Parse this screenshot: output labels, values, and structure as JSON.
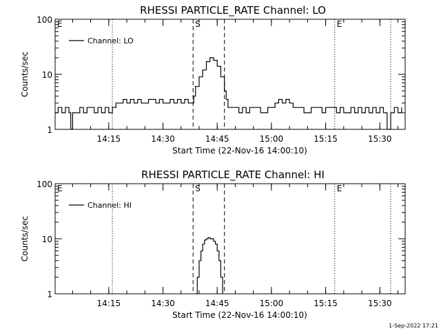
{
  "footer": {
    "date_stamp": "1-Sep-2022 17:21"
  },
  "chart_data": [
    {
      "type": "line",
      "title": "RHESSI PARTICLE_RATE Channel: LO",
      "xlabel": "Start Time (22-Nov-16 14:00:10)",
      "ylabel": "Counts/sec",
      "y_scale": "log",
      "ylim": [
        1,
        100
      ],
      "xlim": [
        "14:00:10",
        "15:37:00"
      ],
      "yticks": [
        "1",
        "10",
        "100"
      ],
      "xticks": [
        "14:15",
        "14:30",
        "14:45",
        "15:00",
        "15:15",
        "15:30"
      ],
      "legend": {
        "position": "top-left",
        "entries": [
          "Channel: LO"
        ]
      },
      "markers": [
        {
          "label": "E",
          "time": "14:00:10",
          "style": "dotted"
        },
        {
          "time": "14:16:00",
          "style": "dotted"
        },
        {
          "label": "S",
          "time": "14:38:20",
          "style": "dashed"
        },
        {
          "time": "14:47:00",
          "style": "dashed"
        },
        {
          "label": "E",
          "time": "15:17:30",
          "style": "dotted"
        },
        {
          "time": "15:33:00",
          "style": "dotted"
        }
      ],
      "series": [
        {
          "name": "Channel: LO",
          "x": [
            "14:00:10",
            "14:01:00",
            "14:02:00",
            "14:03:00",
            "14:04:00",
            "14:04:30",
            "14:05:00",
            "14:06:00",
            "14:07:00",
            "14:08:00",
            "14:09:00",
            "14:10:00",
            "14:11:00",
            "14:12:00",
            "14:13:00",
            "14:14:00",
            "14:15:00",
            "14:16:00",
            "14:17:00",
            "14:18:00",
            "14:19:00",
            "14:20:00",
            "14:21:00",
            "14:22:00",
            "14:23:00",
            "14:24:00",
            "14:25:00",
            "14:26:00",
            "14:27:00",
            "14:28:00",
            "14:29:00",
            "14:30:00",
            "14:31:00",
            "14:32:00",
            "14:33:00",
            "14:34:00",
            "14:35:00",
            "14:36:00",
            "14:37:00",
            "14:38:00",
            "14:38:30",
            "14:39:00",
            "14:40:00",
            "14:41:00",
            "14:42:00",
            "14:43:00",
            "14:44:00",
            "14:45:00",
            "14:46:00",
            "14:47:00",
            "14:47:30",
            "14:48:00",
            "14:49:00",
            "14:50:00",
            "14:51:00",
            "14:52:00",
            "14:53:00",
            "14:54:00",
            "14:55:00",
            "14:56:00",
            "14:57:00",
            "14:58:00",
            "14:59:00",
            "15:00:00",
            "15:01:00",
            "15:02:00",
            "15:03:00",
            "15:04:00",
            "15:05:00",
            "15:06:00",
            "15:07:00",
            "15:08:00",
            "15:09:00",
            "15:10:00",
            "15:11:00",
            "15:12:00",
            "15:13:00",
            "15:14:00",
            "15:15:00",
            "15:16:00",
            "15:17:00",
            "15:18:00",
            "15:19:00",
            "15:20:00",
            "15:21:00",
            "15:22:00",
            "15:23:00",
            "15:24:00",
            "15:25:00",
            "15:26:00",
            "15:27:00",
            "15:28:00",
            "15:29:00",
            "15:30:00",
            "15:31:00",
            "15:32:00",
            "15:33:00",
            "15:34:00",
            "15:35:00",
            "15:36:00"
          ],
          "values": [
            2,
            2.5,
            2,
            2.5,
            2,
            1,
            2,
            2,
            2.5,
            2,
            2.5,
            2.5,
            2,
            2.5,
            2,
            2.5,
            2,
            2.5,
            3,
            3,
            3.5,
            3,
            3.5,
            3,
            3.5,
            3,
            3,
            3.5,
            3.5,
            3,
            3.5,
            3,
            3,
            3.5,
            3,
            3.5,
            3,
            3.5,
            3,
            3,
            4,
            6,
            9,
            12,
            17,
            20,
            18,
            14,
            9,
            5,
            3.5,
            2.5,
            2.5,
            2.5,
            2,
            2.5,
            2,
            2.5,
            2.5,
            2.5,
            2,
            2,
            2.5,
            2.5,
            3,
            3.5,
            3,
            3.5,
            3,
            2.5,
            2.5,
            2.5,
            2,
            2,
            2.5,
            2.5,
            2.5,
            2,
            2.5,
            2.5,
            2.5,
            2,
            2.5,
            2,
            2,
            2.5,
            2,
            2.5,
            2,
            2.5,
            2,
            2.5,
            2,
            2.5,
            2,
            1,
            2,
            2.5,
            2,
            2.5
          ]
        }
      ]
    },
    {
      "type": "line",
      "title": "RHESSI PARTICLE_RATE Channel: HI",
      "xlabel": "Start Time (22-Nov-16 14:00:10)",
      "ylabel": "Counts/sec",
      "y_scale": "log",
      "ylim": [
        1,
        100
      ],
      "xlim": [
        "14:00:10",
        "15:37:00"
      ],
      "yticks": [
        "1",
        "10",
        "100"
      ],
      "xticks": [
        "14:15",
        "14:30",
        "14:45",
        "15:00",
        "15:15",
        "15:30"
      ],
      "legend": {
        "position": "top-left",
        "entries": [
          "Channel: HI"
        ]
      },
      "markers": [
        {
          "label": "E",
          "time": "14:00:10",
          "style": "dotted"
        },
        {
          "time": "14:16:00",
          "style": "dotted"
        },
        {
          "label": "S",
          "time": "14:38:20",
          "style": "dashed"
        },
        {
          "time": "14:47:00",
          "style": "dashed"
        },
        {
          "label": "E",
          "time": "15:17:30",
          "style": "dotted"
        },
        {
          "time": "15:33:00",
          "style": "dotted"
        }
      ],
      "series": [
        {
          "name": "Channel: HI",
          "x": [
            "14:39:00",
            "14:39:30",
            "14:40:00",
            "14:40:30",
            "14:41:00",
            "14:41:30",
            "14:42:00",
            "14:42:30",
            "14:43:00",
            "14:43:30",
            "14:44:00",
            "14:44:30",
            "14:45:00",
            "14:45:30",
            "14:46:00",
            "14:46:30"
          ],
          "values": [
            1,
            2,
            4,
            6,
            8,
            9.5,
            10,
            10.5,
            10,
            10,
            9,
            8,
            6,
            4,
            2,
            1
          ]
        }
      ]
    }
  ]
}
